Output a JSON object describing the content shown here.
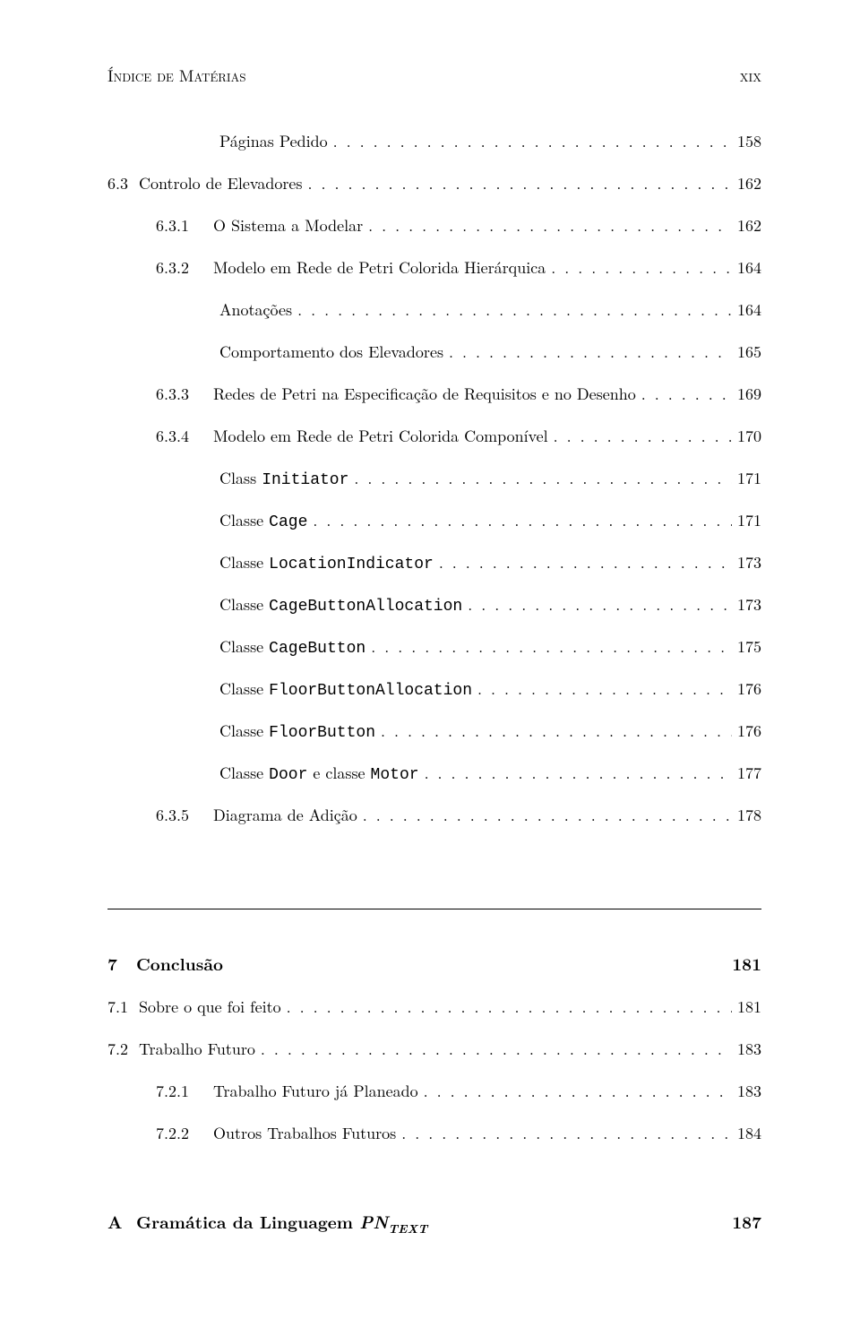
{
  "running_head": {
    "left": "Índice de Matérias",
    "right": "xix"
  },
  "entries": [
    {
      "indent": 3,
      "num": "",
      "label": "Páginas Pedido",
      "page": "158"
    },
    {
      "indent": 0,
      "num": "6.3",
      "label": "Controlo de Elevadores",
      "page": "162"
    },
    {
      "indent": 2,
      "num": "6.3.1",
      "label": "O Sistema a Modelar",
      "page": "162"
    },
    {
      "indent": 2,
      "num": "6.3.2",
      "label": "Modelo em Rede de Petri Colorida Hierárquica",
      "page": "164"
    },
    {
      "indent": 3,
      "num": "",
      "label": "Anotações",
      "page": "164"
    },
    {
      "indent": 3,
      "num": "",
      "label": "Comportamento dos Elevadores",
      "page": "165"
    },
    {
      "indent": 2,
      "num": "6.3.3",
      "label": "Redes de Petri na Especificação de Requisitos e no Desenho",
      "page": "169"
    },
    {
      "indent": 2,
      "num": "6.3.4",
      "label": "Modelo em Rede de Petri Colorida Componível",
      "page": "170"
    },
    {
      "indent": 3,
      "num": "",
      "label_pre": "Class ",
      "label_mono": "Initiator",
      "page": "171"
    },
    {
      "indent": 3,
      "num": "",
      "label_pre": "Classe ",
      "label_mono": "Cage",
      "page": "171"
    },
    {
      "indent": 3,
      "num": "",
      "label_pre": "Classe ",
      "label_mono": "LocationIndicator",
      "page": "173"
    },
    {
      "indent": 3,
      "num": "",
      "label_pre": "Classe ",
      "label_mono": "CageButtonAllocation",
      "page": "173"
    },
    {
      "indent": 3,
      "num": "",
      "label_pre": "Classe ",
      "label_mono": "CageButton",
      "page": "175"
    },
    {
      "indent": 3,
      "num": "",
      "label_pre": "Classe ",
      "label_mono": "FloorButtonAllocation",
      "page": "176"
    },
    {
      "indent": 3,
      "num": "",
      "label_pre": "Classe ",
      "label_mono": "FloorButton",
      "page": "176"
    },
    {
      "indent": 3,
      "num": "",
      "label_pre": "Classe ",
      "label_mono": "Door",
      "label_mid": " e classe ",
      "label_mono2": "Motor",
      "page": "177"
    },
    {
      "indent": 2,
      "num": "6.3.5",
      "label": "Diagrama de Adição",
      "page": "178"
    }
  ],
  "chapter7": {
    "num": "7",
    "title": "Conclusão",
    "page": "181"
  },
  "chapter7_entries": [
    {
      "indent": 0,
      "num": "7.1",
      "label": "Sobre o que foi feito",
      "page": "181"
    },
    {
      "indent": 0,
      "num": "7.2",
      "label": "Trabalho Futuro",
      "page": "183"
    },
    {
      "indent": 2,
      "num": "7.2.1",
      "label": "Trabalho Futuro já Planeado",
      "page": "183"
    },
    {
      "indent": 2,
      "num": "7.2.2",
      "label": "Outros Trabalhos Futuros",
      "page": "184"
    }
  ],
  "appendix": {
    "num": "A",
    "title_pre": "Gramática da Linguagem ",
    "title_var": "PN",
    "title_sub": "TEXT",
    "page": "187"
  }
}
